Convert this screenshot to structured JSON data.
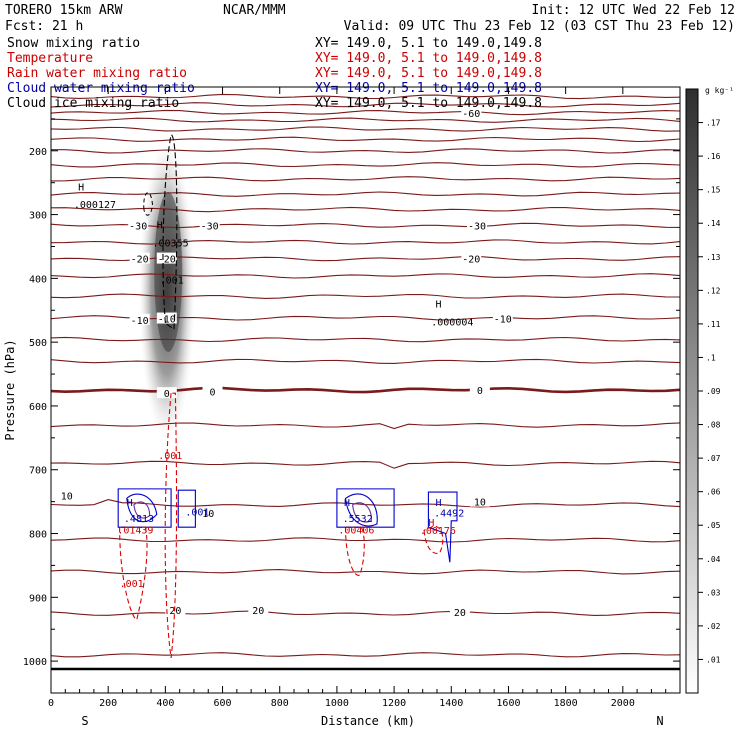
{
  "header": {
    "model": "TORERO  15km ARW",
    "center": "NCAR/MMM",
    "init": "Init: 12 UTC Wed 22 Feb 12",
    "fcst": "Fcst:    21 h",
    "valid": "Valid: 09 UTC Thu 23 Feb 12 (03 CST Thu 23 Feb 12)"
  },
  "fields": [
    {
      "name": "Snow mixing ratio",
      "xy": "XY= 149.0,   5.1 to 149.0,149.8",
      "color": "#000000"
    },
    {
      "name": "Temperature",
      "xy": "XY= 149.0,   5.1 to 149.0,149.8",
      "color": "#cc0000"
    },
    {
      "name": "Rain water mixing ratio",
      "xy": "XY= 149.0,   5.1 to 149.0,149.8",
      "color": "#cc0000"
    },
    {
      "name": "Cloud water mixing ratio",
      "xy": "XY= 149.0,   5.1 to 149.0,149.8",
      "color": "#0000aa"
    },
    {
      "name": "Cloud ice mixing ratio",
      "xy": "XY= 149.0,   5.1 to 149.0,149.8",
      "color": "#000000"
    }
  ],
  "chart_data": {
    "type": "heatmap",
    "xlabel": "Distance (km)",
    "ylabel": "Pressure (hPa)",
    "xlim": [
      0,
      2200
    ],
    "ylim": [
      1050,
      100
    ],
    "x_ticks": [
      0,
      200,
      400,
      600,
      800,
      1000,
      1200,
      1400,
      1600,
      1800,
      2000
    ],
    "y_ticks": [
      200,
      300,
      400,
      500,
      600,
      700,
      800,
      900,
      1000
    ],
    "x_end_labels": {
      "left": "S",
      "right": "N"
    },
    "colorbar": {
      "unit": "g kg⁻¹",
      "ticks": [
        ".01",
        ".02",
        ".03",
        ".04",
        ".05",
        ".06",
        ".07",
        ".08",
        ".09",
        ".1",
        ".11",
        ".12",
        ".13",
        ".14",
        ".15",
        ".16",
        ".17"
      ]
    },
    "temperature_isotherms": {
      "color": "#7a1a1a",
      "lines": [
        {
          "p": 115,
          "label": ""
        },
        {
          "p": 128,
          "label": ""
        },
        {
          "p": 140,
          "label": "-60"
        },
        {
          "p": 152,
          "label": ""
        },
        {
          "p": 166,
          "label": ""
        },
        {
          "p": 182,
          "label": ""
        },
        {
          "p": 200,
          "label": ""
        },
        {
          "p": 222,
          "label": ""
        },
        {
          "p": 244,
          "label": ""
        },
        {
          "p": 268,
          "label": ""
        },
        {
          "p": 292,
          "label": ""
        },
        {
          "p": 317,
          "label": "-30"
        },
        {
          "p": 343,
          "label": ""
        },
        {
          "p": 369,
          "label": "-20"
        },
        {
          "p": 396,
          "label": ""
        },
        {
          "p": 428,
          "label": ""
        },
        {
          "p": 462,
          "label": "-10"
        },
        {
          "p": 496,
          "label": ""
        },
        {
          "p": 530,
          "label": ""
        },
        {
          "p": 575,
          "label": "0",
          "bold": true
        },
        {
          "p": 630,
          "label": ""
        },
        {
          "p": 690,
          "label": ""
        },
        {
          "p": 755,
          "label": "10"
        },
        {
          "p": 810,
          "label": ""
        },
        {
          "p": 860,
          "label": ""
        },
        {
          "p": 925,
          "label": "20"
        },
        {
          "p": 990,
          "label": ""
        }
      ],
      "labels": [
        {
          "x": 1470,
          "p": 141,
          "text": "-60"
        },
        {
          "x": 305,
          "p": 317,
          "text": "-30"
        },
        {
          "x": 555,
          "p": 317,
          "text": "-30"
        },
        {
          "x": 1490,
          "p": 317,
          "text": "-30"
        },
        {
          "x": 310,
          "p": 369,
          "text": "-20"
        },
        {
          "x": 405,
          "p": 369,
          "text": "-20"
        },
        {
          "x": 1470,
          "p": 369,
          "text": "-20"
        },
        {
          "x": 310,
          "p": 465,
          "text": "-10"
        },
        {
          "x": 405,
          "p": 463,
          "text": "-10"
        },
        {
          "x": 1580,
          "p": 463,
          "text": "-10"
        },
        {
          "x": 405,
          "p": 580,
          "text": "0"
        },
        {
          "x": 565,
          "p": 577,
          "text": "0"
        },
        {
          "x": 1500,
          "p": 575,
          "text": "0"
        },
        {
          "x": 55,
          "p": 740,
          "text": "10"
        },
        {
          "x": 550,
          "p": 768,
          "text": "10"
        },
        {
          "x": 1500,
          "p": 750,
          "text": "10"
        },
        {
          "x": 435,
          "p": 920,
          "text": "20"
        },
        {
          "x": 725,
          "p": 920,
          "text": "20"
        },
        {
          "x": 1430,
          "p": 923,
          "text": "20"
        }
      ]
    },
    "annotations": [
      {
        "x": 95,
        "p": 262,
        "text": "H",
        "color": "#000000"
      },
      {
        "x": 80,
        "p": 290,
        "text": ".000127",
        "color": "#000000"
      },
      {
        "x": 370,
        "p": 322,
        "text": "H",
        "color": "#000000"
      },
      {
        "x": 355,
        "p": 350,
        "text": ".00355",
        "color": "#000000"
      },
      {
        "x": 380,
        "p": 408,
        "text": ".001",
        "color": "#000000"
      },
      {
        "x": 1345,
        "p": 446,
        "text": "H",
        "color": "#000000"
      },
      {
        "x": 1330,
        "p": 474,
        "text": ".000004",
        "color": "#000000"
      },
      {
        "x": 375,
        "p": 683,
        "text": ".001",
        "color": "#cc0000"
      },
      {
        "x": 265,
        "p": 757,
        "text": "H",
        "color": "#0000aa"
      },
      {
        "x": 255,
        "p": 782,
        "text": ".4813",
        "color": "#0000aa"
      },
      {
        "x": 470,
        "p": 772,
        "text": ".001",
        "color": "#0000aa"
      },
      {
        "x": 232,
        "p": 800,
        "text": ".01439",
        "color": "#cc0000"
      },
      {
        "x": 240,
        "p": 884,
        "text": ".001",
        "color": "#cc0000"
      },
      {
        "x": 1025,
        "p": 757,
        "text": "H",
        "color": "#0000aa"
      },
      {
        "x": 1020,
        "p": 782,
        "text": ".5532",
        "color": "#0000aa"
      },
      {
        "x": 1005,
        "p": 800,
        "text": ".00406",
        "color": "#cc0000"
      },
      {
        "x": 1345,
        "p": 757,
        "text": "H",
        "color": "#0000aa"
      },
      {
        "x": 1340,
        "p": 773,
        "text": ".4492",
        "color": "#0000aa"
      },
      {
        "x": 1320,
        "p": 788,
        "text": "H",
        "color": "#cc0000"
      },
      {
        "x": 1290,
        "p": 801,
        "text": ".00176",
        "color": "#cc0000"
      }
    ]
  }
}
